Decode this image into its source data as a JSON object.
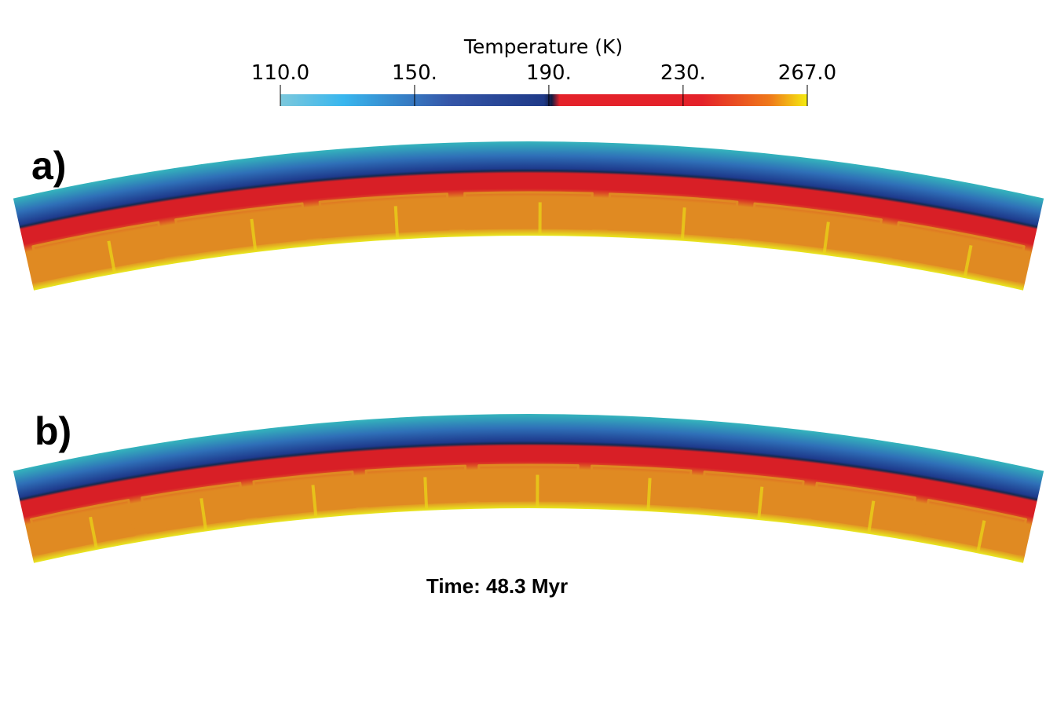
{
  "colorbar": {
    "title": "Temperature (K)",
    "ticks": [
      "110.0",
      "150.",
      "190.",
      "230.",
      "267.0"
    ],
    "tick_values": [
      110.0,
      150.0,
      190.0,
      230.0,
      267.0
    ],
    "range": [
      110.0,
      267.0
    ],
    "colors": {
      "cold_light": "#7cc8dc",
      "cold_cyan": "#38b6ee",
      "mid_blue": "#3556a8",
      "deep_blue": "#1f3a88",
      "dark_navy": "#141a40",
      "red": "#e4222a",
      "orange": "#ef7a1a",
      "yellow": "#f5ec10"
    }
  },
  "panels": [
    {
      "label": "a)",
      "cells": 7
    },
    {
      "label": "b)",
      "cells": 9
    }
  ],
  "field_colors": {
    "surface": "#34b4bc",
    "lid_mid": "#2f70b8",
    "lid_deep": "#1e3a8c",
    "interface": "#142a50",
    "red_layer": "#d81f26",
    "convecting": "#e08a22",
    "plume": "#ead418",
    "bottom": "#e8e820"
  },
  "time_label": "Time: 48.3 Myr"
}
